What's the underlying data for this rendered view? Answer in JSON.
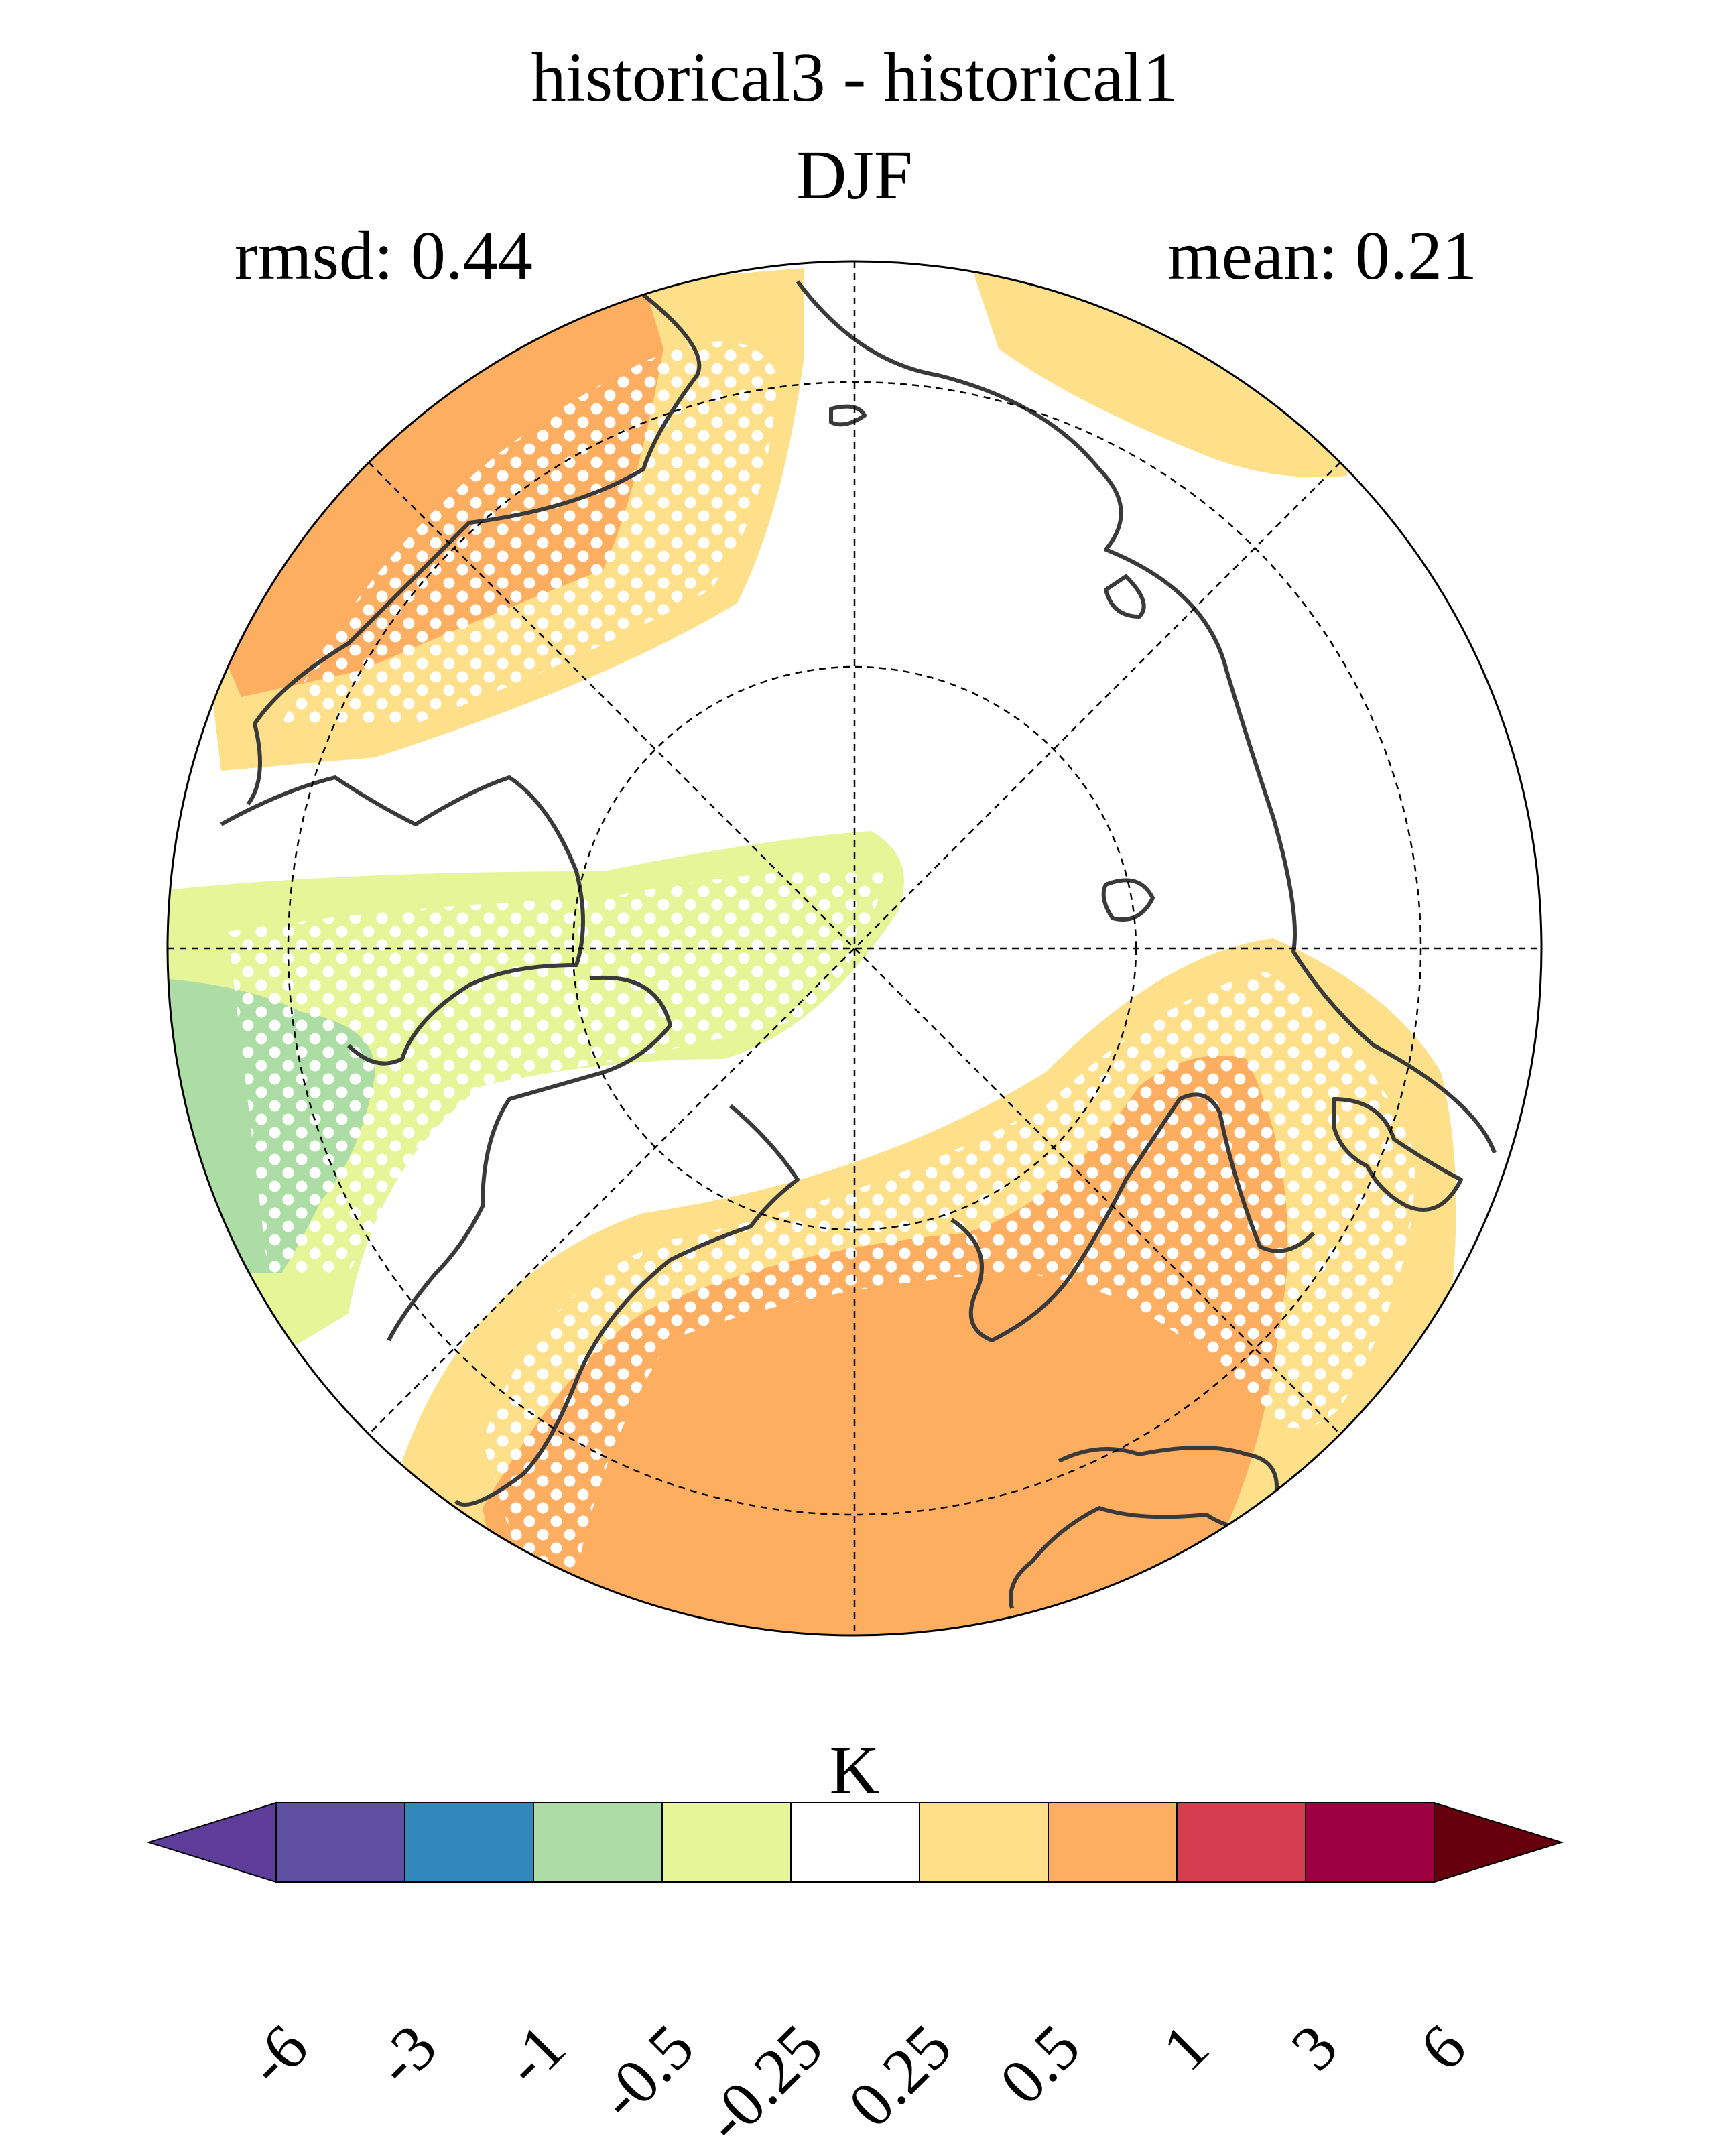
{
  "figure": {
    "title_line1": "historical3 - historical1",
    "title_line2": "DJF",
    "rmsd_label": "rmsd: 0.44",
    "mean_label": "mean: 0.21"
  },
  "map": {
    "projection": "north polar stereographic",
    "stippling": "white dots mark significant differences",
    "regions": [
      {
        "area": "North Atlantic / Greenland Sea sector",
        "bin": "0.5 to 1",
        "color": "#fdae61"
      },
      {
        "area": "Arctic Ocean (Canadian side)",
        "bin": "-0.5 to -0.25",
        "color": "#e6f598"
      },
      {
        "area": "North America (west)",
        "bin": "-1 to -0.5",
        "color": "#abdda4"
      },
      {
        "area": "Eurasia / Siberia",
        "bin": "0.5 to 1",
        "color": "#fdae61"
      },
      {
        "area": "Eurasian Arctic coast",
        "bin": "0.25 to 0.5",
        "color": "#fee08b"
      },
      {
        "area": "North Pacific (upper right)",
        "bin": "0.25 to 0.5",
        "color": "#fee08b"
      },
      {
        "area": "Central Arctic",
        "bin": "-0.25 to 0.25",
        "color": "#ffffff"
      }
    ]
  },
  "colorbar": {
    "units": "K",
    "tick_labels": [
      "-6",
      "-3",
      "-1",
      "-0.5",
      "-0.25",
      "0.25",
      "0.5",
      "1",
      "3",
      "6"
    ],
    "colors": [
      "#5e3c99",
      "#5e4fa2",
      "#3288bd",
      "#abdda4",
      "#e6f598",
      "#ffffff",
      "#fee08b",
      "#fdae61",
      "#d53e4f",
      "#9e0142",
      "#67000d"
    ],
    "extend": "both"
  }
}
